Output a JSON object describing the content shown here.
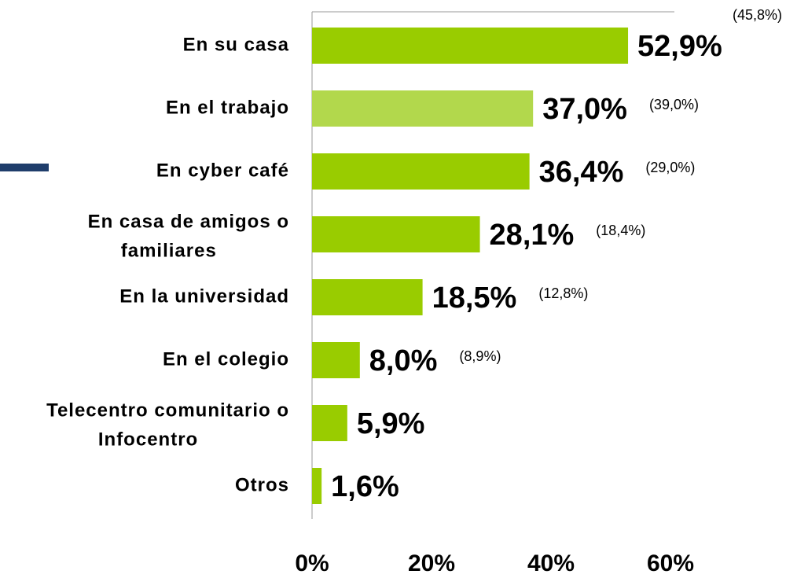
{
  "chart_data": {
    "type": "bar",
    "orientation": "horizontal",
    "categories": [
      [
        "En su casa"
      ],
      [
        "En el trabajo"
      ],
      [
        "En cyber café"
      ],
      [
        "En casa de amigos o",
        "familiares"
      ],
      [
        "En la universidad"
      ],
      [
        "En el colegio"
      ],
      [
        "Telecentro comunitario o",
        "Infocentro"
      ],
      [
        "Otros"
      ]
    ],
    "values": [
      52.9,
      37.0,
      36.4,
      28.1,
      18.5,
      8.0,
      5.9,
      1.6
    ],
    "value_labels": [
      "52,9%",
      "37,0%",
      "36,4%",
      "28,1%",
      "18,5%",
      "8,0%",
      "5,9%",
      "1,6%"
    ],
    "comparison_values": [
      45.8,
      39.0,
      29.0,
      18.4,
      12.8,
      8.9,
      null,
      null
    ],
    "comparison_labels": [
      "(45,8%)",
      "(39,0%)",
      "(29,0%)",
      "(18,4%)",
      "(12,8%)",
      "(8,9%)",
      null,
      null
    ],
    "colors": [
      "#99cc00",
      "#b2d84c",
      "#99cc00",
      "#99cc00",
      "#99cc00",
      "#99cc00",
      "#99cc00",
      "#99cc00"
    ],
    "xlim": [
      0,
      60
    ],
    "xticks": [
      {
        "value": 0,
        "label": "0%"
      },
      {
        "value": 20,
        "label": "20%"
      },
      {
        "value": 40,
        "label": "40%"
      },
      {
        "value": 60,
        "label": "60%"
      }
    ],
    "grid": false
  }
}
